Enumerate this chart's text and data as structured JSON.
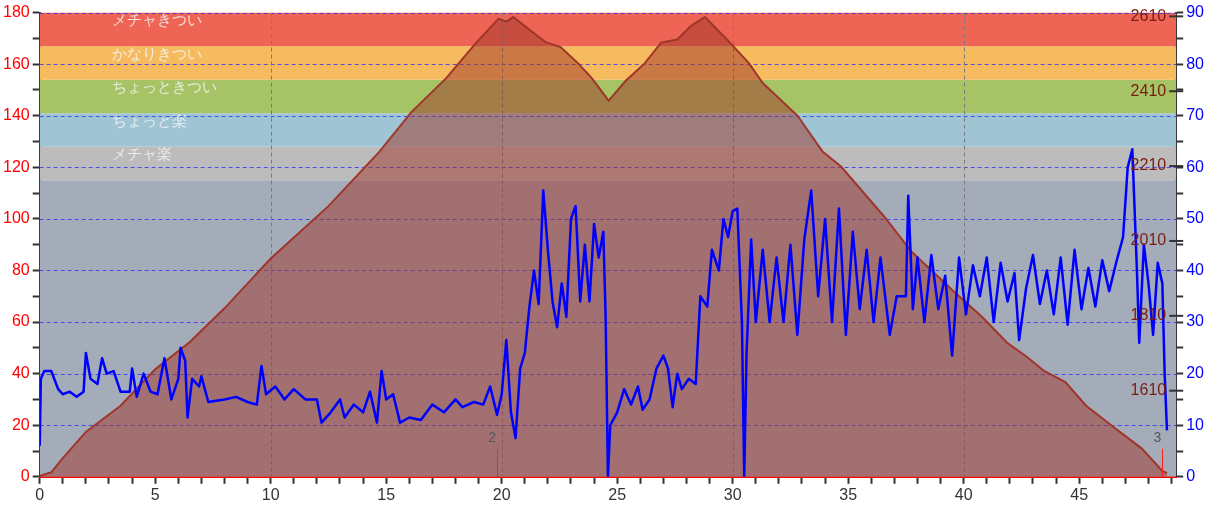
{
  "chart_data": {
    "type": "area",
    "xlim": [
      0,
      49.2
    ],
    "xticks": [
      0,
      {
        "value": 1,
        "label": null
      },
      {
        "value": 2,
        "label": null
      },
      {
        "value": 3,
        "label": null
      },
      {
        "value": 4,
        "label": null
      },
      5,
      {
        "value": 6,
        "label": null
      },
      {
        "value": 7,
        "label": null
      },
      {
        "value": 8,
        "label": null
      },
      {
        "value": 9,
        "label": null
      },
      10,
      {
        "value": 11,
        "label": null
      },
      {
        "value": 12,
        "label": null
      },
      {
        "value": 13,
        "label": null
      },
      {
        "value": 14,
        "label": null
      },
      15,
      {
        "value": 16,
        "label": null
      },
      {
        "value": 17,
        "label": null
      },
      {
        "value": 18,
        "label": null
      },
      {
        "value": 19,
        "label": null
      },
      20,
      {
        "value": 21,
        "label": null
      },
      {
        "value": 22,
        "label": null
      },
      {
        "value": 23,
        "label": null
      },
      {
        "value": 24,
        "label": null
      },
      25,
      {
        "value": 26,
        "label": null
      },
      {
        "value": 27,
        "label": null
      },
      {
        "value": 28,
        "label": null
      },
      {
        "value": 29,
        "label": null
      },
      30,
      {
        "value": 31,
        "label": null
      },
      {
        "value": 32,
        "label": null
      },
      {
        "value": 33,
        "label": null
      },
      {
        "value": 34,
        "label": null
      },
      35,
      {
        "value": 36,
        "label": null
      },
      {
        "value": 37,
        "label": null
      },
      {
        "value": 38,
        "label": null
      },
      {
        "value": 39,
        "label": null
      },
      40,
      {
        "value": 41,
        "label": null
      },
      {
        "value": 42,
        "label": null
      },
      {
        "value": 43,
        "label": null
      },
      {
        "value": 44,
        "label": null
      },
      45,
      {
        "value": 46,
        "label": null
      },
      {
        "value": 47,
        "label": null
      },
      {
        "value": 48,
        "label": null
      },
      {
        "value": 49,
        "label": null
      }
    ],
    "ylim": [
      0,
      180
    ],
    "yticks": [
      0,
      {
        "value": 10,
        "label": null
      },
      20,
      {
        "value": 30,
        "label": null
      },
      40,
      {
        "value": 50,
        "label": null
      },
      60,
      {
        "value": 70,
        "label": null
      },
      80,
      {
        "value": 90,
        "label": null
      },
      100,
      {
        "value": 110,
        "label": null
      },
      120,
      {
        "value": 130,
        "label": null
      },
      140,
      {
        "value": 150,
        "label": null
      },
      160,
      {
        "value": 170,
        "label": null
      },
      180
    ],
    "y2lim": [
      0,
      90
    ],
    "y2ticks": [
      0,
      {
        "value": 5,
        "label": null
      },
      10,
      {
        "value": 15,
        "label": null
      },
      20,
      {
        "value": 25,
        "label": null
      },
      30,
      {
        "value": 35,
        "label": null
      },
      40,
      {
        "value": 45,
        "label": null
      },
      50,
      {
        "value": 55,
        "label": null
      },
      60,
      {
        "value": 65,
        "label": null
      },
      70,
      {
        "value": 75,
        "label": null
      },
      80,
      {
        "value": 85,
        "label": null
      },
      90
    ],
    "y3lim": [
      1380,
      2620
    ],
    "y3ticks": [
      1610,
      1810,
      2010,
      2210,
      2410,
      2610
    ],
    "grid": "y",
    "legend": false,
    "bands": [
      {
        "axis": "y",
        "from": 0,
        "to": 115,
        "color": "#a4abb9"
      },
      {
        "axis": "y",
        "from": 115,
        "to": 128,
        "label": "メチャ楽",
        "color": "#bcbcbc"
      },
      {
        "axis": "y",
        "from": 128,
        "to": 141,
        "label": "ちょっと楽",
        "color": "#9fc5d4"
      },
      {
        "axis": "y",
        "from": 141,
        "to": 154,
        "label": "ちょっときつい",
        "color": "#a6c466"
      },
      {
        "axis": "y",
        "from": 154,
        "to": 167,
        "label": "かなりきつい",
        "color": "#f5bb5e"
      },
      {
        "axis": "y",
        "from": 167,
        "to": 180,
        "label": "メチャきつい",
        "color": "#ef6555"
      }
    ],
    "ref_lines": [
      {
        "axis": "x",
        "value": 10,
        "color": "#7a7a7a",
        "line_style": "dashed"
      },
      {
        "axis": "x",
        "value": 20,
        "color": "#7a7a7a",
        "line_style": "dashed"
      },
      {
        "axis": "x",
        "value": 30,
        "color": "#7a7a7a",
        "line_style": "dashed"
      },
      {
        "axis": "x",
        "value": 40,
        "color": "#7a7a7a",
        "line_style": "dashed"
      }
    ],
    "annotations": [
      {
        "text": "2",
        "x": 19.8,
        "y": 0
      },
      {
        "text": "3",
        "x": 48.6,
        "y": 0
      }
    ],
    "series": [
      {
        "type": "area",
        "axis": "y3",
        "color": "#a0352a",
        "x": [
          0,
          0.5,
          1,
          2,
          2.5,
          3.5,
          5,
          6.5,
          8,
          10,
          12.5,
          14.7,
          16.1,
          17.6,
          18.9,
          19.87,
          20.2,
          20.5,
          21.9,
          22.55,
          23.3,
          23.9,
          24.63,
          25.37,
          26.2,
          26.9,
          27.6,
          28.2,
          28.8,
          29.8,
          30.7,
          31.3,
          32.8,
          33.9,
          34.7,
          36.6,
          37.7,
          39.5,
          40.8,
          41.9,
          42.7,
          43.5,
          44.4,
          45.3,
          46.4,
          47.7,
          48.6,
          48.8
        ],
        "values": [
          1382,
          1392,
          1430,
          1500,
          1523,
          1570,
          1667,
          1740,
          1830,
          1963,
          2103,
          2248,
          2355,
          2445,
          2540,
          2604,
          2596,
          2608,
          2541,
          2528,
          2485,
          2445,
          2385,
          2438,
          2485,
          2540,
          2548,
          2585,
          2608,
          2545,
          2485,
          2432,
          2345,
          2248,
          2208,
          2072,
          1984,
          1879,
          1807,
          1737,
          1702,
          1662,
          1633,
          1570,
          1517,
          1456,
          1396,
          1390
        ]
      },
      {
        "type": "line",
        "axis": "y2",
        "color": "#0000ff",
        "marker": "none",
        "x": [
          0,
          0.05,
          0.2,
          0.5,
          0.8,
          1.0,
          1.3,
          1.6,
          1.9,
          2.0,
          2.2,
          2.5,
          2.7,
          2.9,
          3.2,
          3.5,
          3.9,
          4.0,
          4.2,
          4.5,
          4.8,
          5.1,
          5.4,
          5.7,
          6.0,
          6.1,
          6.3,
          6.4,
          6.6,
          6.9,
          7.0,
          7.3,
          8,
          8.5,
          9,
          9.4,
          9.6,
          9.8,
          10.2,
          10.6,
          11,
          11.5,
          12,
          12.2,
          12.6,
          13,
          13.2,
          13.6,
          14,
          14.3,
          14.6,
          14.8,
          15.0,
          15.3,
          15.6,
          16,
          16.5,
          17,
          17.5,
          18,
          18.3,
          18.8,
          19.2,
          19.5,
          19.8,
          20.0,
          20.2,
          20.4,
          20.6,
          20.8,
          21.0,
          21.2,
          21.4,
          21.6,
          21.8,
          22.0,
          22.2,
          22.4,
          22.6,
          22.8,
          23.0,
          23.2,
          23.4,
          23.6,
          23.8,
          24.0,
          24.2,
          24.4,
          24.5,
          24.6,
          24.7,
          25.0,
          25.3,
          25.6,
          25.9,
          26.1,
          26.4,
          26.7,
          27.0,
          27.2,
          27.4,
          27.6,
          27.8,
          28.1,
          28.4,
          28.6,
          28.9,
          29.1,
          29.4,
          29.6,
          29.8,
          30.0,
          30.2,
          30.4,
          30.5,
          30.6,
          30.8,
          31.0,
          31.3,
          31.6,
          31.9,
          32.2,
          32.5,
          32.8,
          33.1,
          33.4,
          33.7,
          34.0,
          34.3,
          34.6,
          34.9,
          35.2,
          35.5,
          35.8,
          36.1,
          36.4,
          36.8,
          37.1,
          37.5,
          37.6,
          37.8,
          38.0,
          38.3,
          38.6,
          38.9,
          39.2,
          39.5,
          39.8,
          40.1,
          40.4,
          40.7,
          41.0,
          41.3,
          41.6,
          41.9,
          42.2,
          42.4,
          42.7,
          43.0,
          43.3,
          43.6,
          43.9,
          44.2,
          44.5,
          44.8,
          45.1,
          45.4,
          45.7,
          46.0,
          46.3,
          46.6,
          46.9,
          47.1,
          47.3,
          47.5,
          47.6,
          47.8,
          48.0,
          48.2,
          48.4,
          48.6,
          48.7,
          48.8
        ],
        "values": [
          6,
          19,
          20.5,
          20.5,
          17,
          16,
          16.5,
          15.5,
          16.5,
          24,
          19,
          18,
          23,
          20,
          20.5,
          16.5,
          16.5,
          21,
          15.5,
          20,
          16.5,
          16,
          23,
          15,
          19,
          25,
          22.5,
          11.5,
          19,
          17.5,
          19.5,
          14.5,
          15,
          15.5,
          14.5,
          14,
          21.5,
          16,
          17.5,
          15,
          17,
          15,
          15,
          10.5,
          12.5,
          15,
          11.5,
          14,
          12.5,
          16.5,
          10.5,
          20.5,
          15,
          16,
          10.5,
          11.5,
          11,
          14,
          12.5,
          15,
          13.5,
          14.5,
          14,
          17.5,
          12,
          16,
          26.5,
          12.5,
          7.5,
          21,
          24,
          33,
          40,
          33.5,
          55.5,
          44,
          34,
          29,
          37.5,
          31,
          50,
          52.5,
          34,
          45,
          34,
          49,
          42.5,
          47.5,
          31,
          0,
          10,
          12.5,
          17,
          14,
          17.5,
          13,
          15,
          21,
          23.5,
          21,
          13.5,
          20,
          17,
          19,
          18,
          35,
          33,
          44,
          40,
          50,
          46.5,
          51.5,
          52,
          30,
          0,
          24,
          46,
          30,
          44,
          30,
          42.5,
          30,
          45,
          27.5,
          46,
          55.5,
          35,
          50,
          30,
          52,
          27.5,
          47.5,
          32.5,
          44,
          30,
          42.5,
          27.5,
          35,
          35,
          54.5,
          32.5,
          42.5,
          30,
          43,
          32.5,
          39,
          23.5,
          42.5,
          31.5,
          41,
          35,
          42.5,
          30,
          41.5,
          34,
          39.5,
          26.5,
          36.5,
          43,
          33.5,
          40,
          31.5,
          42.5,
          29.5,
          44,
          32.5,
          40.5,
          33,
          42,
          36,
          41.5,
          46.5,
          60,
          63.5,
          40,
          26,
          45,
          37.5,
          27.5,
          41.5,
          37.5,
          20,
          9
        ]
      }
    ]
  }
}
